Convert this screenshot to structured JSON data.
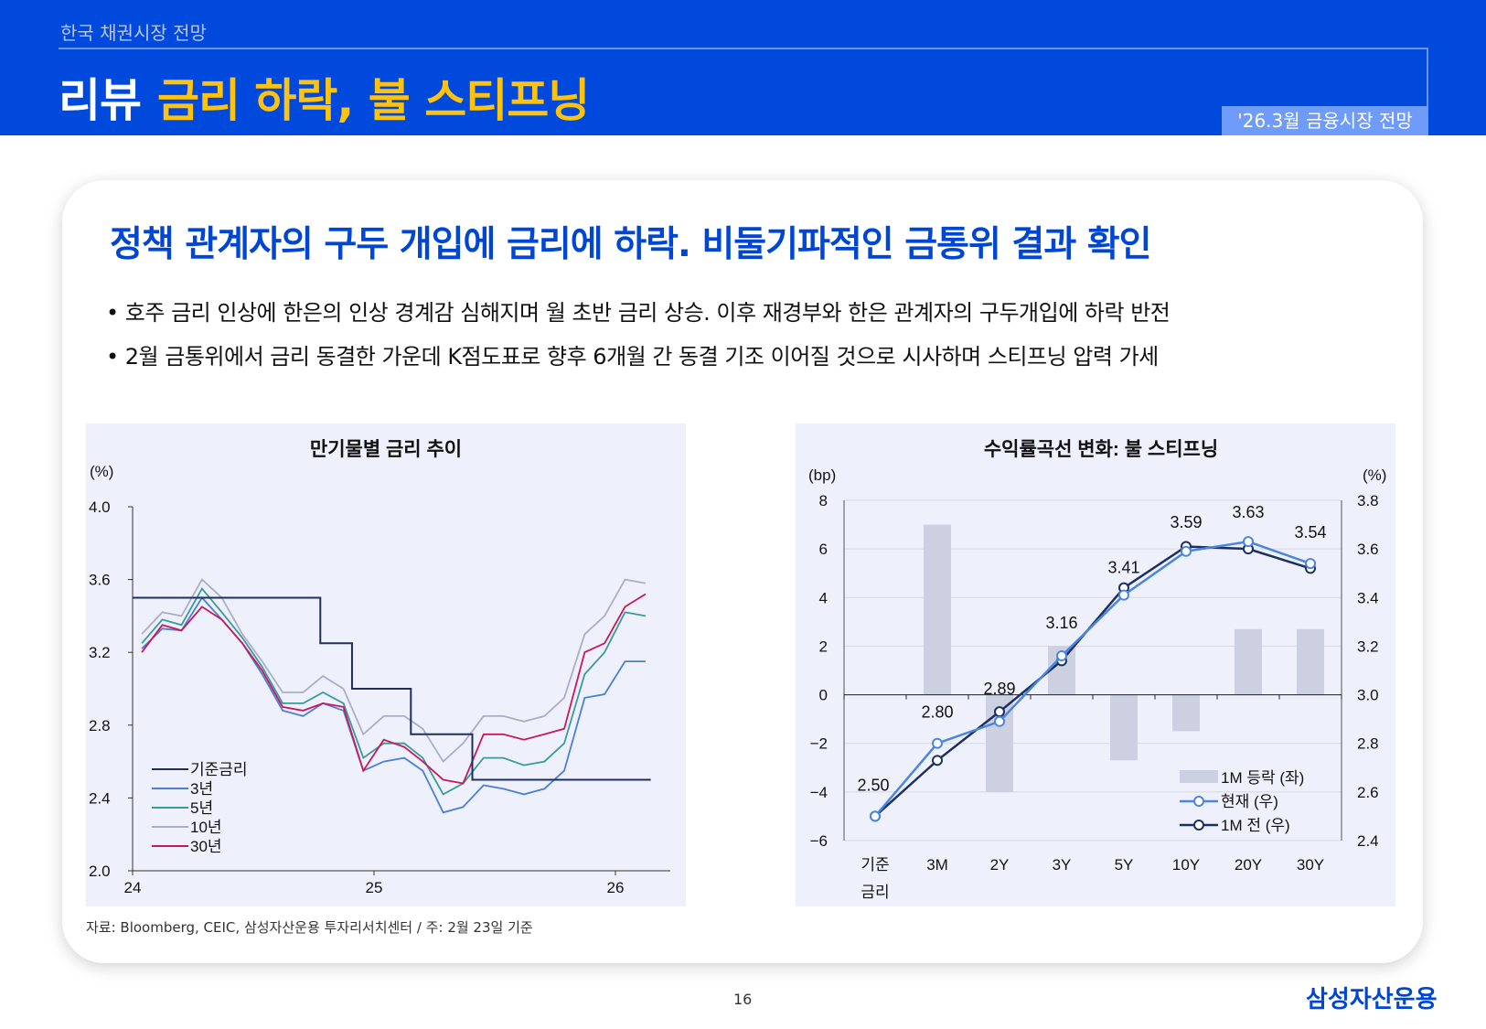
{
  "header": {
    "section": "한국 채권시장 전망",
    "title_prefix": "리뷰",
    "title_highlight": "금리 하락, 불 스티프닝",
    "badge": "'26.3월 금융시장 전망"
  },
  "main": {
    "heading": "정책 관계자의 구두 개입에 금리에 하락. 비둘기파적인 금통위 결과 확인",
    "bullets": [
      "• 호주 금리 인상에 한은의 인상 경계감 심해지며 월 초반 금리 상승. 이후 재경부와 한은 관계자의 구두개입에 하락 반전",
      "• 2월 금통위에서 금리 동결한 가운데 K점도표로 향후 6개월 간 동결 기조 이어질 것으로 시사하며 스티프닝 압력 가세"
    ],
    "source": "자료: Bloomberg, CEIC, 삼성자산운용 투자리서치센터 / 주: 2월 23일 기준"
  },
  "footer": {
    "page": "16",
    "logo": "삼성자산운용"
  },
  "chart_data": [
    {
      "type": "line",
      "title": "만기물별 금리 추이",
      "ylabel": "(%)",
      "ylim": [
        2.0,
        4.0
      ],
      "yticks": [
        "2.0",
        "2.4",
        "2.8",
        "3.2",
        "3.6",
        "4.0"
      ],
      "xticks": [
        "24",
        "25",
        "26"
      ],
      "legend_position": "bottom-left",
      "x": [
        "2024-01",
        "2024-02",
        "2024-03",
        "2024-04",
        "2024-05",
        "2024-06",
        "2024-07",
        "2024-08",
        "2024-09",
        "2024-10",
        "2024-11",
        "2024-12",
        "2025-01",
        "2025-02",
        "2025-03",
        "2025-04",
        "2025-05",
        "2025-06",
        "2025-07",
        "2025-08",
        "2025-09",
        "2025-10",
        "2025-11",
        "2025-12",
        "2026-01",
        "2026-02"
      ],
      "series": [
        {
          "name": "기준금리",
          "color": "#1f2f5c",
          "step": true,
          "points": [
            [
              "2024-01-01",
              3.5
            ],
            [
              "2024-10-11",
              3.25
            ],
            [
              "2024-11-28",
              3.0
            ],
            [
              "2025-02-25",
              2.75
            ],
            [
              "2025-05-29",
              2.5
            ],
            [
              "2026-02-23",
              2.5
            ]
          ]
        },
        {
          "name": "3년",
          "color": "#4a7fd8",
          "values": [
            3.22,
            3.33,
            3.32,
            3.5,
            3.38,
            3.25,
            3.08,
            2.88,
            2.85,
            2.92,
            2.88,
            2.55,
            2.6,
            2.62,
            2.55,
            2.32,
            2.35,
            2.47,
            2.45,
            2.42,
            2.45,
            2.55,
            2.95,
            2.97,
            3.15,
            3.15
          ]
        },
        {
          "name": "5년",
          "color": "#3a9a9a",
          "values": [
            3.25,
            3.38,
            3.35,
            3.55,
            3.42,
            3.28,
            3.12,
            2.92,
            2.92,
            2.98,
            2.92,
            2.62,
            2.7,
            2.7,
            2.62,
            2.42,
            2.48,
            2.62,
            2.62,
            2.58,
            2.6,
            2.7,
            3.08,
            3.2,
            3.42,
            3.4
          ]
        },
        {
          "name": "10년",
          "color": "#a9adc8",
          "values": [
            3.3,
            3.42,
            3.4,
            3.6,
            3.5,
            3.3,
            3.15,
            2.98,
            2.98,
            3.07,
            3.0,
            2.75,
            2.85,
            2.85,
            2.78,
            2.6,
            2.7,
            2.85,
            2.85,
            2.82,
            2.85,
            2.95,
            3.3,
            3.4,
            3.6,
            3.58
          ]
        },
        {
          "name": "30년",
          "color": "#c8185a",
          "values": [
            3.2,
            3.35,
            3.32,
            3.45,
            3.38,
            3.25,
            3.1,
            2.9,
            2.88,
            2.92,
            2.9,
            2.55,
            2.72,
            2.68,
            2.6,
            2.5,
            2.48,
            2.75,
            2.75,
            2.72,
            2.75,
            2.78,
            3.2,
            3.25,
            3.45,
            3.52
          ]
        }
      ]
    },
    {
      "type": "bar+line",
      "title": "수익률곡선 변화: 불 스티프닝",
      "ylabel_left": "(bp)",
      "ylabel_right": "(%)",
      "ylim_left": [
        -6,
        8
      ],
      "ylim_right": [
        2.4,
        3.8
      ],
      "yticks_left": [
        "-6",
        "-4",
        "-2",
        "0",
        "2",
        "4",
        "6",
        "8"
      ],
      "yticks_right": [
        "2.4",
        "2.6",
        "2.8",
        "3.0",
        "3.2",
        "3.4",
        "3.6",
        "3.8"
      ],
      "categories": [
        "기준\n금리",
        "3M",
        "2Y",
        "3Y",
        "5Y",
        "10Y",
        "20Y",
        "30Y"
      ],
      "legend_position": "bottom-right",
      "bars": {
        "name": "1M 등락 (좌)",
        "color": "#cdd0e0",
        "values": [
          0,
          7.0,
          -4.0,
          2.0,
          -2.7,
          -1.5,
          2.7,
          2.7
        ]
      },
      "series": [
        {
          "name": "현재 (우)",
          "color": "#4a86e0",
          "values": [
            2.5,
            2.8,
            2.89,
            3.16,
            3.41,
            3.59,
            3.63,
            3.54
          ],
          "labels": [
            "2.50",
            "2.80",
            "2.89",
            "3.16",
            "3.41",
            "3.59",
            "3.63",
            "3.54"
          ]
        },
        {
          "name": "1M 전 (우)",
          "color": "#1c2f60",
          "values": [
            2.5,
            2.73,
            2.93,
            3.14,
            3.44,
            3.61,
            3.6,
            3.52
          ]
        }
      ]
    }
  ]
}
